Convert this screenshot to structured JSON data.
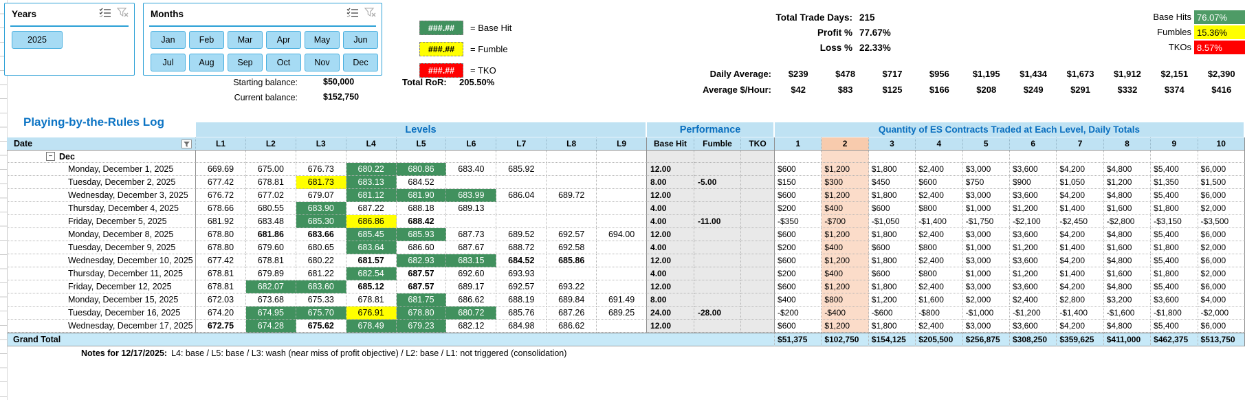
{
  "slicers": {
    "years": {
      "title": "Years",
      "items": [
        "2025"
      ]
    },
    "months": {
      "title": "Months",
      "items": [
        "Jan",
        "Feb",
        "Mar",
        "Apr",
        "May",
        "Jun",
        "Jul",
        "Aug",
        "Sep",
        "Oct",
        "Nov",
        "Dec"
      ]
    }
  },
  "legend": {
    "items": [
      {
        "sample": "###.##",
        "label": "= Base Hit",
        "color": "#41915E"
      },
      {
        "sample": "###.##",
        "label": "= Fumble",
        "color": "#FFFF00"
      },
      {
        "sample": "###.##",
        "label": "= TKO",
        "color": "#FF0000"
      }
    ]
  },
  "balances": {
    "starting_label": "Starting balance:",
    "starting_value": "$50,000",
    "current_label": "Current balance:",
    "current_value": "$152,750",
    "ror_label": "Total RoR:",
    "ror_value": "205.50%"
  },
  "stats": {
    "rows": [
      {
        "label": "Total Trade Days:",
        "value": "215"
      },
      {
        "label": "Profit %",
        "value": "77.67%"
      },
      {
        "label": "Loss %",
        "value": "22.33%"
      }
    ],
    "badges": [
      {
        "label": "Base Hits",
        "value": "76.07%",
        "color": "#4E9B66"
      },
      {
        "label": "Fumbles",
        "value": "15.36%",
        "color": "#FFFF00"
      },
      {
        "label": "TKOs",
        "value": "8.57%",
        "color": "#FF0000"
      }
    ]
  },
  "averages": {
    "daily_label": "Daily Average:",
    "daily_values": [
      "$239",
      "$478",
      "$717",
      "$956",
      "$1,195",
      "$1,434",
      "$1,673",
      "$1,912",
      "$2,151",
      "$2,390"
    ],
    "hour_label": "Average $/Hour:",
    "hour_values": [
      "$42",
      "$83",
      "$125",
      "$166",
      "$208",
      "$249",
      "$291",
      "$332",
      "$374",
      "$416"
    ]
  },
  "table": {
    "title": "Playing-by-the-Rules Log",
    "groups": {
      "levels": "Levels",
      "performance": "Performance",
      "quantity": "Quantity of ES Contracts Traded at Each Level, Daily Totals"
    },
    "columns": {
      "date": "Date",
      "levels": [
        "L1",
        "L2",
        "L3",
        "L4",
        "L5",
        "L6",
        "L7",
        "L8",
        "L9"
      ],
      "performance": [
        "Base Hit",
        "Fumble",
        "TKO"
      ],
      "quantities": [
        "1",
        "2",
        "3",
        "4",
        "5",
        "6",
        "7",
        "8",
        "9",
        "10"
      ]
    },
    "group_row_label": "Dec",
    "rows": [
      {
        "date": "Monday, December 1, 2025",
        "lv": [
          [
            "669.69",
            ""
          ],
          [
            "675.00",
            ""
          ],
          [
            "676.73",
            ""
          ],
          [
            "680.22",
            "g"
          ],
          [
            "680.86",
            "g"
          ],
          [
            "683.40",
            ""
          ],
          [
            "685.92",
            ""
          ],
          null,
          null
        ],
        "bh": "12.00",
        "fu": "",
        "tk": "",
        "dol": [
          "$600",
          "$1,200",
          "$1,800",
          "$2,400",
          "$3,000",
          "$3,600",
          "$4,200",
          "$4,800",
          "$5,400",
          "$6,000"
        ]
      },
      {
        "date": "Tuesday, December 2, 2025",
        "lv": [
          [
            "677.42",
            ""
          ],
          [
            "678.81",
            ""
          ],
          [
            "681.73",
            "y"
          ],
          [
            "683.13",
            "g"
          ],
          [
            "684.52",
            ""
          ],
          null,
          null,
          null,
          null
        ],
        "bh": "8.00",
        "fu": "-5.00",
        "tk": "",
        "dol": [
          "$150",
          "$300",
          "$450",
          "$600",
          "$750",
          "$900",
          "$1,050",
          "$1,200",
          "$1,350",
          "$1,500"
        ]
      },
      {
        "date": "Wednesday, December 3, 2025",
        "lv": [
          [
            "676.72",
            ""
          ],
          [
            "677.02",
            ""
          ],
          [
            "679.07",
            ""
          ],
          [
            "681.12",
            "g"
          ],
          [
            "681.90",
            "g"
          ],
          [
            "683.99",
            "g"
          ],
          [
            "686.04",
            ""
          ],
          [
            "689.72",
            ""
          ],
          null
        ],
        "bh": "12.00",
        "fu": "",
        "tk": "",
        "dol": [
          "$600",
          "$1,200",
          "$1,800",
          "$2,400",
          "$3,000",
          "$3,600",
          "$4,200",
          "$4,800",
          "$5,400",
          "$6,000"
        ]
      },
      {
        "date": "Thursday, December 4, 2025",
        "lv": [
          [
            "678.66",
            ""
          ],
          [
            "680.55",
            ""
          ],
          [
            "683.90",
            "g"
          ],
          [
            "687.22",
            ""
          ],
          [
            "688.18",
            ""
          ],
          [
            "689.13",
            ""
          ],
          null,
          null,
          null
        ],
        "bh": "4.00",
        "fu": "",
        "tk": "",
        "dol": [
          "$200",
          "$400",
          "$600",
          "$800",
          "$1,000",
          "$1,200",
          "$1,400",
          "$1,600",
          "$1,800",
          "$2,000"
        ]
      },
      {
        "date": "Friday, December 5, 2025",
        "lv": [
          [
            "681.92",
            ""
          ],
          [
            "683.48",
            ""
          ],
          [
            "685.30",
            "g"
          ],
          [
            "686.86",
            "y"
          ],
          [
            "688.42",
            "b"
          ],
          null,
          null,
          null,
          null
        ],
        "bh": "4.00",
        "fu": "-11.00",
        "tk": "",
        "dol": [
          "-$350",
          "-$700",
          "-$1,050",
          "-$1,400",
          "-$1,750",
          "-$2,100",
          "-$2,450",
          "-$2,800",
          "-$3,150",
          "-$3,500"
        ]
      },
      {
        "date": "Monday, December 8, 2025",
        "lv": [
          [
            "678.80",
            ""
          ],
          [
            "681.86",
            "b"
          ],
          [
            "683.66",
            "b"
          ],
          [
            "685.45",
            "g"
          ],
          [
            "685.93",
            "g"
          ],
          [
            "687.73",
            ""
          ],
          [
            "689.52",
            ""
          ],
          [
            "692.57",
            ""
          ],
          [
            "694.00",
            ""
          ]
        ],
        "bh": "12.00",
        "fu": "",
        "tk": "",
        "dol": [
          "$600",
          "$1,200",
          "$1,800",
          "$2,400",
          "$3,000",
          "$3,600",
          "$4,200",
          "$4,800",
          "$5,400",
          "$6,000"
        ]
      },
      {
        "date": "Tuesday, December 9, 2025",
        "lv": [
          [
            "678.80",
            ""
          ],
          [
            "679.60",
            ""
          ],
          [
            "680.65",
            ""
          ],
          [
            "683.64",
            "g"
          ],
          [
            "686.60",
            ""
          ],
          [
            "687.67",
            ""
          ],
          [
            "688.72",
            ""
          ],
          [
            "692.58",
            ""
          ],
          null
        ],
        "bh": "4.00",
        "fu": "",
        "tk": "",
        "dol": [
          "$200",
          "$400",
          "$600",
          "$800",
          "$1,000",
          "$1,200",
          "$1,400",
          "$1,600",
          "$1,800",
          "$2,000"
        ]
      },
      {
        "date": "Wednesday, December 10, 2025",
        "lv": [
          [
            "677.42",
            ""
          ],
          [
            "678.81",
            ""
          ],
          [
            "680.22",
            ""
          ],
          [
            "681.57",
            "b"
          ],
          [
            "682.93",
            "g"
          ],
          [
            "683.15",
            "g"
          ],
          [
            "684.52",
            "b"
          ],
          [
            "685.86",
            "b"
          ],
          null
        ],
        "bh": "12.00",
        "fu": "",
        "tk": "",
        "dol": [
          "$600",
          "$1,200",
          "$1,800",
          "$2,400",
          "$3,000",
          "$3,600",
          "$4,200",
          "$4,800",
          "$5,400",
          "$6,000"
        ]
      },
      {
        "date": "Thursday, December 11, 2025",
        "lv": [
          [
            "678.81",
            ""
          ],
          [
            "679.89",
            ""
          ],
          [
            "681.22",
            ""
          ],
          [
            "682.54",
            "g"
          ],
          [
            "687.57",
            "b"
          ],
          [
            "692.60",
            ""
          ],
          [
            "693.93",
            ""
          ],
          null,
          null
        ],
        "bh": "4.00",
        "fu": "",
        "tk": "",
        "dol": [
          "$200",
          "$400",
          "$600",
          "$800",
          "$1,000",
          "$1,200",
          "$1,400",
          "$1,600",
          "$1,800",
          "$2,000"
        ]
      },
      {
        "date": "Friday, December 12, 2025",
        "lv": [
          [
            "678.81",
            ""
          ],
          [
            "682.07",
            "g"
          ],
          [
            "683.60",
            "g"
          ],
          [
            "685.12",
            "b"
          ],
          [
            "687.57",
            "b"
          ],
          [
            "689.17",
            ""
          ],
          [
            "692.57",
            ""
          ],
          [
            "693.22",
            ""
          ],
          null
        ],
        "bh": "12.00",
        "fu": "",
        "tk": "",
        "dol": [
          "$600",
          "$1,200",
          "$1,800",
          "$2,400",
          "$3,000",
          "$3,600",
          "$4,200",
          "$4,800",
          "$5,400",
          "$6,000"
        ]
      },
      {
        "date": "Monday, December 15, 2025",
        "lv": [
          [
            "672.03",
            ""
          ],
          [
            "673.68",
            ""
          ],
          [
            "675.33",
            ""
          ],
          [
            "678.81",
            ""
          ],
          [
            "681.75",
            "g"
          ],
          [
            "686.62",
            ""
          ],
          [
            "688.19",
            ""
          ],
          [
            "689.84",
            ""
          ],
          [
            "691.49",
            ""
          ]
        ],
        "bh": "8.00",
        "fu": "",
        "tk": "",
        "dol": [
          "$400",
          "$800",
          "$1,200",
          "$1,600",
          "$2,000",
          "$2,400",
          "$2,800",
          "$3,200",
          "$3,600",
          "$4,000"
        ]
      },
      {
        "date": "Tuesday, December 16, 2025",
        "lv": [
          [
            "674.20",
            ""
          ],
          [
            "674.95",
            "g"
          ],
          [
            "675.70",
            "g"
          ],
          [
            "676.91",
            "y"
          ],
          [
            "678.80",
            "g"
          ],
          [
            "680.72",
            "g"
          ],
          [
            "685.76",
            ""
          ],
          [
            "687.26",
            ""
          ],
          [
            "689.25",
            ""
          ]
        ],
        "bh": "24.00",
        "fu": "-28.00",
        "tk": "",
        "dol": [
          "-$200",
          "-$400",
          "-$600",
          "-$800",
          "-$1,000",
          "-$1,200",
          "-$1,400",
          "-$1,600",
          "-$1,800",
          "-$2,000"
        ]
      },
      {
        "date": "Wednesday, December 17, 2025",
        "lv": [
          [
            "672.75",
            "b"
          ],
          [
            "674.28",
            "g"
          ],
          [
            "675.62",
            "b"
          ],
          [
            "678.49",
            "g"
          ],
          [
            "679.23",
            "g"
          ],
          [
            "682.12",
            ""
          ],
          [
            "684.98",
            ""
          ],
          [
            "686.62",
            ""
          ],
          null
        ],
        "bh": "12.00",
        "fu": "",
        "tk": "",
        "dol": [
          "$600",
          "$1,200",
          "$1,800",
          "$2,400",
          "$3,000",
          "$3,600",
          "$4,200",
          "$4,800",
          "$5,400",
          "$6,000"
        ]
      }
    ],
    "grand_total": {
      "label": "Grand Total",
      "dollars": [
        "$51,375",
        "$102,750",
        "$154,125",
        "$205,500",
        "$256,875",
        "$308,250",
        "$359,625",
        "$411,000",
        "$462,375",
        "$513,750"
      ]
    },
    "notes_label": "Notes for 12/17/2025:",
    "notes_text": "L4: base / L5: base /  L3: wash (near miss of profit objective) / L2: base / L1: not triggered (consolidation)"
  },
  "colors": {
    "base_hit_green": "#41915E",
    "fumble_yellow": "#FFFF00",
    "tko_red": "#FF0000",
    "header_blue_bg": "#BFE2F3",
    "header_blue_text": "#0A6FBF",
    "highlight_column_peach": "#FBDCC9",
    "highlight_header_peach": "#F8CBAD",
    "slicer_blue": "#A6DBF4",
    "grand_total_bg": "#C7E9F8"
  }
}
